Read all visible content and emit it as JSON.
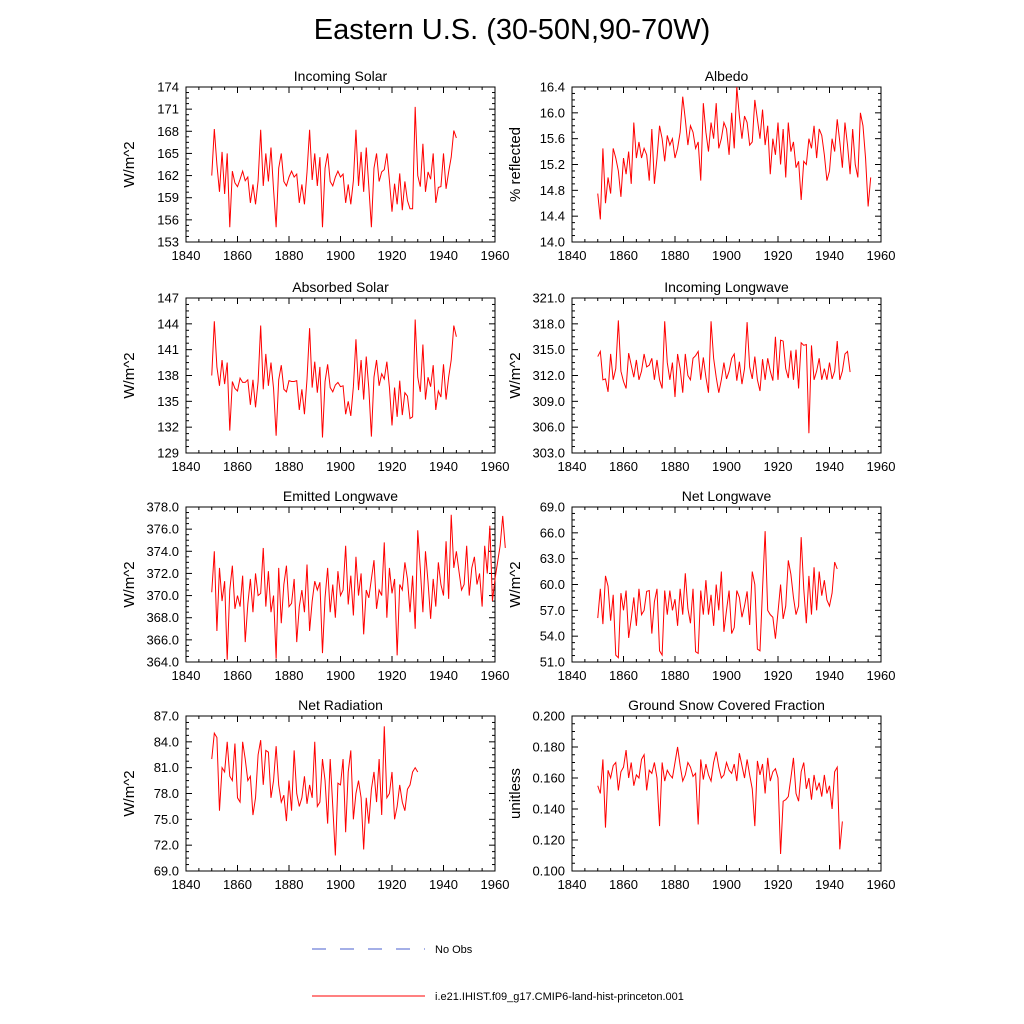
{
  "figure": {
    "title": "Eastern U.S. (30-50N,90-70W)",
    "legend": [
      {
        "label": "No Obs",
        "color": "#4a5fcf",
        "style": "dashed"
      },
      {
        "label": "i.e21.IHIST.f09_g17.CMIP6-land-hist-princeton.001",
        "color": "#ff0000",
        "style": "solid"
      }
    ]
  },
  "chart_data": [
    {
      "type": "line",
      "title": "Incoming Solar",
      "ylabel": "W/m^2",
      "xlim": [
        1840,
        1960
      ],
      "ylim": [
        153,
        174
      ],
      "xticks": [
        1840,
        1860,
        1880,
        1900,
        1920,
        1940,
        1960
      ],
      "yticks": [
        "153",
        "156",
        "159",
        "162",
        "165",
        "168",
        "171",
        "174"
      ],
      "series": [
        {
          "color": "#ff0000",
          "x_start": 1850,
          "values": [
            162.0,
            168.3,
            163.5,
            159.8,
            165.2,
            159.5,
            165.0,
            155.0,
            162.6,
            161.0,
            160.5,
            161.5,
            162.6,
            161.3,
            161.8,
            158.3,
            160.8,
            158.1,
            161.3,
            168.2,
            160.6,
            165.0,
            161.2,
            165.8,
            160.1,
            155.0,
            163.0,
            165.0,
            161.2,
            160.6,
            161.8,
            162.6,
            161.8,
            162.2,
            158.3,
            160.8,
            158.1,
            162.5,
            168.2,
            161.4,
            165.0,
            160.6,
            164.5,
            155.0,
            163.0,
            165.0,
            161.2,
            160.6,
            161.8,
            162.6,
            161.8,
            162.2,
            158.3,
            160.8,
            158.1,
            161.3,
            168.2,
            160.6,
            165.2,
            159.8,
            165.8,
            160.5,
            155.0,
            163.0,
            165.0,
            161.2,
            162.5,
            162.8,
            165.0,
            161.3,
            157.1,
            160.9,
            158.1,
            162.3,
            157.3,
            161.2,
            158.6,
            157.5,
            157.5,
            171.3,
            162.0,
            160.5,
            166.3,
            159.8,
            162.5,
            161.5,
            165.0,
            158.3,
            160.4,
            160.5,
            165.0,
            160.2,
            162.5,
            164.5,
            168.1,
            167.1
          ]
        }
      ]
    },
    {
      "type": "line",
      "title": "Albedo",
      "ylabel": "% reflected",
      "xlim": [
        1840,
        1960
      ],
      "ylim": [
        14.0,
        16.4
      ],
      "xticks": [
        1840,
        1860,
        1880,
        1900,
        1920,
        1940,
        1960
      ],
      "yticks": [
        "14.0",
        "14.4",
        "14.8",
        "15.2",
        "15.6",
        "16.0",
        "16.4"
      ],
      "series": [
        {
          "color": "#ff0000",
          "x_start": 1850,
          "values": [
            14.75,
            14.35,
            15.45,
            14.6,
            15.0,
            14.75,
            15.45,
            15.3,
            15.1,
            14.7,
            15.3,
            15.05,
            15.4,
            14.9,
            15.85,
            15.3,
            15.55,
            15.3,
            15.45,
            15.35,
            14.95,
            15.75,
            14.9,
            15.3,
            15.8,
            15.6,
            15.25,
            15.65,
            15.5,
            15.6,
            15.3,
            15.45,
            15.7,
            16.25,
            15.9,
            15.5,
            15.8,
            15.7,
            15.45,
            15.55,
            14.95,
            16.15,
            15.7,
            15.4,
            15.85,
            15.6,
            16.15,
            15.45,
            15.6,
            15.85,
            15.75,
            15.35,
            16.0,
            15.45,
            16.4,
            15.95,
            15.6,
            15.95,
            15.85,
            15.5,
            15.55,
            16.2,
            15.9,
            15.6,
            16.05,
            15.5,
            15.8,
            15.05,
            15.6,
            15.35,
            15.85,
            15.2,
            15.75,
            15.0,
            15.85,
            15.4,
            15.55,
            15.15,
            15.25,
            14.65,
            15.25,
            15.2,
            15.6,
            15.45,
            15.8,
            15.3,
            15.75,
            15.65,
            15.35,
            14.95,
            15.1,
            15.6,
            15.4,
            15.9,
            15.55,
            15.15,
            15.85,
            15.5,
            15.05,
            15.75,
            15.2,
            15.0,
            16.0,
            15.8,
            15.3,
            14.55,
            15.0
          ]
        }
      ]
    },
    {
      "type": "line",
      "title": "Absorbed Solar",
      "ylabel": "W/m^2",
      "xlim": [
        1840,
        1960
      ],
      "ylim": [
        129,
        147
      ],
      "xticks": [
        1840,
        1860,
        1880,
        1900,
        1920,
        1940,
        1960
      ],
      "yticks": [
        "129",
        "132",
        "135",
        "138",
        "141",
        "144",
        "147"
      ],
      "series": [
        {
          "color": "#ff0000",
          "x_start": 1850,
          "values": [
            138.0,
            144.3,
            139.0,
            136.8,
            139.8,
            137.0,
            139.5,
            131.6,
            137.3,
            136.5,
            136.2,
            137.7,
            137.2,
            137.2,
            137.5,
            134.6,
            137.5,
            134.3,
            137.3,
            143.8,
            136.4,
            140.5,
            136.8,
            139.5,
            136.5,
            131.0,
            137.5,
            139.2,
            136.4,
            136.1,
            137.4,
            137.3,
            137.3,
            137.4,
            134.0,
            136.4,
            133.5,
            137.6,
            143.5,
            136.6,
            139.6,
            136.0,
            139.0,
            130.8,
            137.3,
            139.3,
            136.6,
            136.1,
            136.9,
            137.2,
            136.7,
            136.8,
            133.5,
            135.0,
            133.3,
            136.7,
            142.2,
            136.3,
            139.8,
            135.2,
            140.2,
            136.5,
            130.9,
            137.8,
            139.8,
            136.8,
            138.2,
            137.6,
            139.6,
            136.6,
            132.2,
            136.6,
            133.2,
            137.4,
            133.4,
            136.0,
            135.6,
            133.0,
            133.2,
            144.5,
            137.8,
            136.1,
            141.6,
            135.2,
            137.8,
            136.7,
            139.2,
            134.0,
            136.2,
            135.5,
            139.3,
            135.2,
            137.8,
            139.8,
            143.8,
            142.5
          ]
        }
      ]
    },
    {
      "type": "line",
      "title": "Incoming Longwave",
      "ylabel": "W/m^2",
      "xlim": [
        1840,
        1960
      ],
      "ylim": [
        303.0,
        321.0
      ],
      "xticks": [
        1840,
        1860,
        1880,
        1900,
        1920,
        1940,
        1960
      ],
      "yticks": [
        "303.0",
        "306.0",
        "309.0",
        "312.0",
        "315.0",
        "318.0",
        "321.0"
      ],
      "series": [
        {
          "color": "#ff0000",
          "x_start": 1850,
          "values": [
            314.2,
            314.8,
            311.5,
            311.6,
            310.1,
            314.5,
            311.5,
            312.8,
            318.4,
            312.5,
            311.3,
            310.5,
            314.6,
            313.2,
            311.8,
            313.8,
            311.5,
            312.5,
            314.5,
            313.0,
            313.2,
            314.0,
            311.5,
            313.8,
            311.5,
            310.5,
            318.3,
            313.5,
            311.5,
            313.5,
            309.5,
            314.5,
            312.8,
            310.0,
            314.5,
            312.0,
            311.5,
            314.0,
            314.3,
            314.8,
            311.5,
            314.1,
            311.8,
            310.0,
            318.3,
            314.0,
            311.8,
            310.0,
            311.5,
            313.5,
            311.6,
            312.5,
            314.0,
            314.5,
            311.4,
            313.6,
            311.0,
            312.8,
            318.2,
            313.0,
            311.6,
            314.2,
            311.5,
            310.2,
            313.9,
            311.5,
            314.0,
            312.5,
            311.4,
            316.5,
            311.5,
            316.1,
            316.0,
            312.8,
            311.7,
            314.9,
            311.5,
            315.0,
            310.5,
            315.8,
            315.5,
            315.6,
            305.3,
            315.5,
            311.5,
            312.5,
            314.0,
            311.5,
            312.8,
            311.5,
            313.5,
            311.6,
            312.5,
            316.0,
            311.5,
            312.5,
            314.5,
            314.8,
            312.4
          ]
        }
      ]
    },
    {
      "type": "line",
      "title": "Emitted Longwave",
      "ylabel": "W/m^2",
      "xlim": [
        1840,
        1960
      ],
      "ylim": [
        364.0,
        378.0
      ],
      "xticks": [
        1840,
        1860,
        1880,
        1900,
        1920,
        1940,
        1960
      ],
      "yticks": [
        "364.0",
        "366.0",
        "368.0",
        "370.0",
        "372.0",
        "374.0",
        "376.0",
        "378.0"
      ],
      "series": [
        {
          "color": "#ff0000",
          "x_start": 1850,
          "values": [
            370.3,
            374.0,
            366.8,
            372.5,
            369.5,
            371.3,
            364.2,
            370.5,
            372.7,
            368.8,
            370.0,
            369.0,
            371.8,
            365.8,
            369.2,
            371.5,
            368.5,
            372.0,
            370.0,
            370.2,
            374.3,
            369.0,
            372.2,
            368.5,
            370.0,
            364.3,
            372.5,
            367.5,
            371.0,
            372.7,
            369.0,
            369.3,
            371.5,
            365.8,
            369.0,
            370.5,
            368.5,
            372.8,
            366.8,
            369.5,
            371.3,
            370.5,
            371.2,
            364.8,
            369.8,
            372.5,
            368.5,
            371.0,
            368.0,
            372.2,
            370.0,
            370.5,
            374.5,
            369.2,
            371.8,
            368.2,
            373.5,
            370.0,
            372.0,
            366.5,
            370.5,
            369.8,
            371.5,
            373.2,
            368.8,
            370.5,
            370.0,
            374.8,
            368.0,
            372.5,
            370.2,
            371.5,
            364.6,
            371.0,
            370.5,
            373.0,
            371.5,
            368.5,
            371.8,
            367.0,
            375.9,
            372.4,
            368.5,
            374.0,
            371.2,
            367.9,
            371.5,
            369.0,
            373.0,
            371.0,
            370.0,
            374.9,
            369.7,
            377.3,
            372.5,
            374.0,
            372.2,
            370.5,
            371.0,
            374.5,
            370.0,
            372.5,
            373.5,
            371.0,
            372.0,
            369.0,
            374.5,
            372.0,
            376.3,
            369.5,
            371.5,
            373.0,
            374.5,
            377.2,
            374.3
          ]
        }
      ]
    },
    {
      "type": "line",
      "title": "Net Longwave",
      "ylabel": "W/m^2",
      "xlim": [
        1840,
        1960
      ],
      "ylim": [
        51.0,
        69.0
      ],
      "xticks": [
        1840,
        1860,
        1880,
        1900,
        1920,
        1940,
        1960
      ],
      "yticks": [
        "51.0",
        "54.0",
        "57.0",
        "60.0",
        "63.0",
        "66.0",
        "69.0"
      ],
      "series": [
        {
          "color": "#ff0000",
          "x_start": 1850,
          "values": [
            56.1,
            59.5,
            55.4,
            61.0,
            59.8,
            55.8,
            58.8,
            51.8,
            51.5,
            59.0,
            57.0,
            59.3,
            53.8,
            56.0,
            58.5,
            55.2,
            59.5,
            56.5,
            57.0,
            59.2,
            59.3,
            54.3,
            58.0,
            59.5,
            52.3,
            51.8,
            59.3,
            56.5,
            59.3,
            57.0,
            58.3,
            55.2,
            59.5,
            56.5,
            61.3,
            57.2,
            55.5,
            59.5,
            52.2,
            52.0,
            59.3,
            56.5,
            60.5,
            56.5,
            58.8,
            55.2,
            60.0,
            57.0,
            61.5,
            54.5,
            57.0,
            59.3,
            54.3,
            55.0,
            59.3,
            58.5,
            56.2,
            57.5,
            59.2,
            55.3,
            61.5,
            60.0,
            52.5,
            52.3,
            59.5,
            66.2,
            57.0,
            56.5,
            56.2,
            53.7,
            56.8,
            60.0,
            56.0,
            57.5,
            62.8,
            61.2,
            58.5,
            56.5,
            57.5,
            65.5,
            59.5,
            55.5,
            61.0,
            56.5,
            62.0,
            57.0,
            61.5,
            58.7,
            60.5,
            58.2,
            57.5,
            59.0,
            62.6,
            61.8
          ]
        }
      ]
    },
    {
      "type": "line",
      "title": "Net Radiation",
      "ylabel": "W/m^2",
      "xlim": [
        1840,
        1960
      ],
      "ylim": [
        69.0,
        87.0
      ],
      "xticks": [
        1840,
        1860,
        1880,
        1900,
        1920,
        1940,
        1960
      ],
      "yticks": [
        "69.0",
        "72.0",
        "75.0",
        "78.0",
        "81.0",
        "84.0",
        "87.0"
      ],
      "series": [
        {
          "color": "#ff0000",
          "x_start": 1850,
          "values": [
            82.0,
            85.0,
            84.5,
            76.0,
            81.0,
            80.5,
            84.0,
            80.0,
            79.5,
            83.8,
            77.5,
            77.0,
            84.0,
            82.0,
            79.5,
            80.0,
            75.5,
            77.5,
            82.5,
            84.2,
            79.0,
            83.0,
            82.8,
            77.5,
            79.5,
            83.5,
            79.0,
            77.0,
            77.8,
            74.8,
            79.5,
            76.0,
            83.0,
            78.0,
            76.5,
            77.5,
            80.0,
            76.8,
            79.0,
            77.5,
            84.0,
            76.5,
            77.0,
            82.0,
            79.5,
            74.5,
            82.0,
            76.5,
            70.8,
            79.2,
            79.0,
            82.0,
            73.5,
            80.5,
            83.0,
            75.0,
            78.0,
            79.5,
            77.5,
            71.5,
            77.5,
            74.5,
            78.5,
            80.5,
            77.0,
            82.0,
            75.5,
            85.8,
            77.5,
            78.0,
            80.5,
            75.0,
            76.5,
            79.0,
            77.0,
            76.0,
            78.5,
            79.0,
            80.5,
            81.0,
            80.5
          ]
        }
      ]
    },
    {
      "type": "line",
      "title": "Ground Snow Covered Fraction",
      "ylabel": "unitless",
      "xlim": [
        1840,
        1960
      ],
      "ylim": [
        0.1,
        0.2
      ],
      "xticks": [
        1840,
        1860,
        1880,
        1900,
        1920,
        1940,
        1960
      ],
      "yticks": [
        "0.100",
        "0.120",
        "0.140",
        "0.160",
        "0.180",
        "0.200"
      ],
      "series": [
        {
          "color": "#ff0000",
          "x_start": 1850,
          "values": [
            0.155,
            0.15,
            0.172,
            0.128,
            0.165,
            0.16,
            0.168,
            0.17,
            0.152,
            0.164,
            0.167,
            0.178,
            0.16,
            0.17,
            0.155,
            0.162,
            0.16,
            0.172,
            0.175,
            0.152,
            0.165,
            0.163,
            0.17,
            0.16,
            0.129,
            0.17,
            0.158,
            0.165,
            0.162,
            0.16,
            0.17,
            0.18,
            0.168,
            0.158,
            0.162,
            0.17,
            0.167,
            0.161,
            0.163,
            0.13,
            0.172,
            0.159,
            0.169,
            0.162,
            0.158,
            0.17,
            0.177,
            0.167,
            0.16,
            0.162,
            0.17,
            0.165,
            0.163,
            0.169,
            0.158,
            0.176,
            0.168,
            0.16,
            0.172,
            0.162,
            0.153,
            0.129,
            0.171,
            0.162,
            0.169,
            0.15,
            0.173,
            0.158,
            0.164,
            0.166,
            0.16,
            0.111,
            0.145,
            0.146,
            0.148,
            0.16,
            0.173,
            0.15,
            0.145,
            0.164,
            0.17,
            0.153,
            0.16,
            0.146,
            0.162,
            0.152,
            0.157,
            0.148,
            0.162,
            0.15,
            0.155,
            0.14,
            0.164,
            0.167,
            0.114,
            0.132
          ]
        }
      ]
    }
  ]
}
